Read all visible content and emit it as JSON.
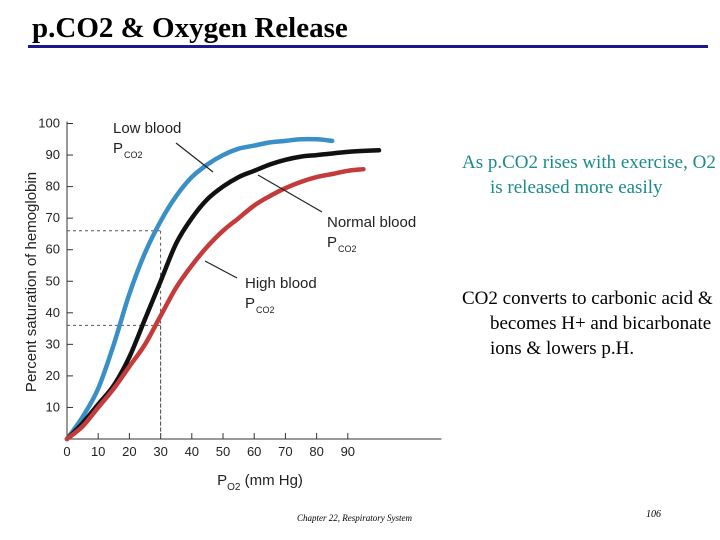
{
  "slide": {
    "title": "p.CO2 & Oxygen Release",
    "bullet_1": "As p.CO2 rises with exercise, O2 is released more easily",
    "bullet_2": "CO2 converts to carbonic acid & becomes H+ and bicarbonate ions & lowers p.H.",
    "footer": "Chapter 22, Respiratory System",
    "page_number": "106"
  },
  "chart_data": {
    "type": "line",
    "xlabel": "PO2 (mm Hg)",
    "ylabel": "Percent saturation of hemoglobin",
    "xlim": [
      0,
      120
    ],
    "ylim": [
      0,
      100
    ],
    "x_ticks": [
      0,
      10,
      20,
      30,
      40,
      50,
      60,
      70,
      80,
      90
    ],
    "y_ticks": [
      10,
      20,
      30,
      40,
      50,
      60,
      70,
      80,
      90,
      100
    ],
    "series": [
      {
        "name": "Low blood PCO2",
        "label_main": "Low blood",
        "label_sub": "P",
        "label_subscript": "CO2",
        "color": "#3a8fc6",
        "x": [
          0,
          5,
          10,
          15,
          20,
          25,
          30,
          35,
          40,
          45,
          50,
          55,
          60,
          65,
          70,
          75,
          80,
          85
        ],
        "y": [
          0,
          7,
          16,
          30,
          46,
          59,
          69,
          77,
          83,
          87,
          90,
          92,
          93,
          94,
          94.5,
          95,
          95,
          94.5
        ]
      },
      {
        "name": "Normal blood PCO2",
        "label_main": "Normal blood",
        "label_sub": "P",
        "label_subscript": "CO2",
        "color": "#111111",
        "x": [
          0,
          5,
          10,
          15,
          20,
          25,
          30,
          35,
          40,
          45,
          50,
          55,
          60,
          65,
          70,
          75,
          80,
          85,
          90,
          95,
          100
        ],
        "y": [
          0,
          5,
          11,
          17,
          26,
          38,
          50,
          62,
          70,
          76,
          80,
          83,
          85,
          87,
          88.5,
          89.5,
          90,
          90.5,
          91,
          91.3,
          91.5
        ]
      },
      {
        "name": "High blood PCO2",
        "label_main": "High blood",
        "label_sub": "P",
        "label_subscript": "CO2",
        "color": "#c43b3b",
        "x": [
          0,
          5,
          10,
          15,
          20,
          25,
          30,
          35,
          40,
          45,
          50,
          55,
          60,
          65,
          70,
          75,
          80,
          85,
          90,
          95
        ],
        "y": [
          0,
          4,
          10,
          16,
          23,
          30,
          39,
          48,
          55,
          61,
          66,
          70,
          74,
          77,
          79.5,
          81.5,
          83,
          84,
          85,
          85.5
        ]
      }
    ],
    "reference_lines": [
      {
        "x": 30,
        "y": 66
      },
      {
        "x": 30,
        "y": 36
      }
    ]
  }
}
